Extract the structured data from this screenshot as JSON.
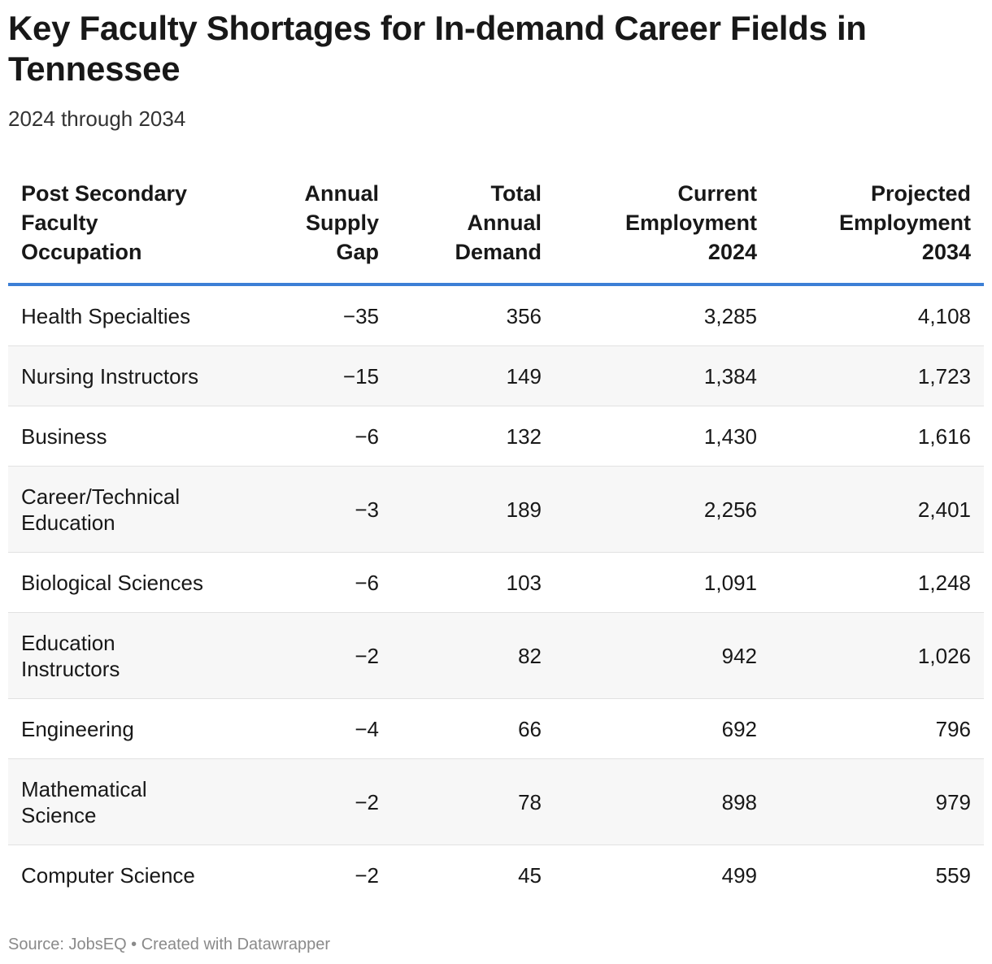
{
  "title": "Key Faculty Shortages for In-demand Career Fields in Tennessee",
  "subtitle": "2024 through 2034",
  "source": "Source: JobsEQ • Created with Datawrapper",
  "chart_data": {
    "type": "table",
    "columns": [
      "Post Secondary Faculty Occupation",
      "Annual Supply Gap",
      "Total Annual Demand",
      "Current Employment 2024",
      "Projected Employment 2034"
    ],
    "rows": [
      [
        "Health Specialties",
        "−35",
        "356",
        "3,285",
        "4,108"
      ],
      [
        "Nursing Instructors",
        "−15",
        "149",
        "1,384",
        "1,723"
      ],
      [
        "Business",
        "−6",
        "132",
        "1,430",
        "1,616"
      ],
      [
        "Career/Technical Education",
        "−3",
        "189",
        "2,256",
        "2,401"
      ],
      [
        "Biological Sciences",
        "−6",
        "103",
        "1,091",
        "1,248"
      ],
      [
        "Education Instructors",
        "−2",
        "82",
        "942",
        "1,026"
      ],
      [
        "Engineering",
        "−4",
        "66",
        "692",
        "796"
      ],
      [
        "Mathematical Science",
        "−2",
        "78",
        "898",
        "979"
      ],
      [
        "Computer Science",
        "−2",
        "45",
        "499",
        "559"
      ]
    ],
    "header_rule_color": "#3c7fd6",
    "row_stripe_color": "#f7f7f7"
  }
}
